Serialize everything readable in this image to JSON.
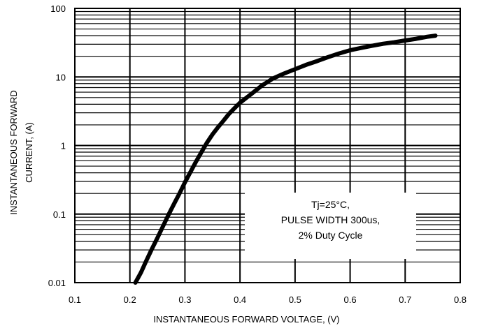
{
  "chart_data": {
    "type": "line",
    "title": "",
    "xlabel": "INSTANTANEOUS FORWARD VOLTAGE, (V)",
    "ylabel_lines": [
      "INSTANTANEOUS FORWARD",
      "CURRENT, (A)"
    ],
    "xlim": [
      0.1,
      0.8
    ],
    "ylim": [
      0.01,
      100
    ],
    "y_scale": "log",
    "grid": true,
    "x_ticks": [
      0.1,
      0.2,
      0.3,
      0.4,
      0.5,
      0.6,
      0.7,
      0.8
    ],
    "x_tick_labels": [
      "0.1",
      "0.2",
      "0.3",
      "0.4",
      "0.5",
      "0.6",
      "0.7",
      "0.8"
    ],
    "y_ticks": [
      0.01,
      0.1,
      1,
      10,
      100
    ],
    "y_tick_labels": [
      "0.01",
      "0.1",
      "1",
      "10",
      "100"
    ],
    "annotation": {
      "lines": [
        "Tj=25°C,",
        "PULSE WIDTH 300us,",
        "2% Duty Cycle"
      ],
      "placement": "lower-right"
    },
    "line_color": "#000000",
    "series": [
      {
        "x": [
          0.21,
          0.22,
          0.23,
          0.24,
          0.25,
          0.26,
          0.27,
          0.28,
          0.29,
          0.3,
          0.31,
          0.32,
          0.33,
          0.34,
          0.35,
          0.36,
          0.37,
          0.38,
          0.39,
          0.4,
          0.42,
          0.44,
          0.46,
          0.48,
          0.5,
          0.52,
          0.54,
          0.56,
          0.58,
          0.6,
          0.62,
          0.64,
          0.66,
          0.68,
          0.7,
          0.72,
          0.74,
          0.755
        ],
        "y": [
          0.01,
          0.014,
          0.021,
          0.031,
          0.045,
          0.066,
          0.097,
          0.14,
          0.2,
          0.29,
          0.41,
          0.58,
          0.8,
          1.1,
          1.45,
          1.85,
          2.3,
          2.9,
          3.5,
          4.2,
          5.6,
          7.5,
          9.5,
          11.2,
          13,
          15,
          17,
          19.5,
          22,
          24.5,
          26.5,
          28.5,
          30.5,
          32,
          34,
          36,
          38.5,
          40
        ]
      }
    ]
  }
}
